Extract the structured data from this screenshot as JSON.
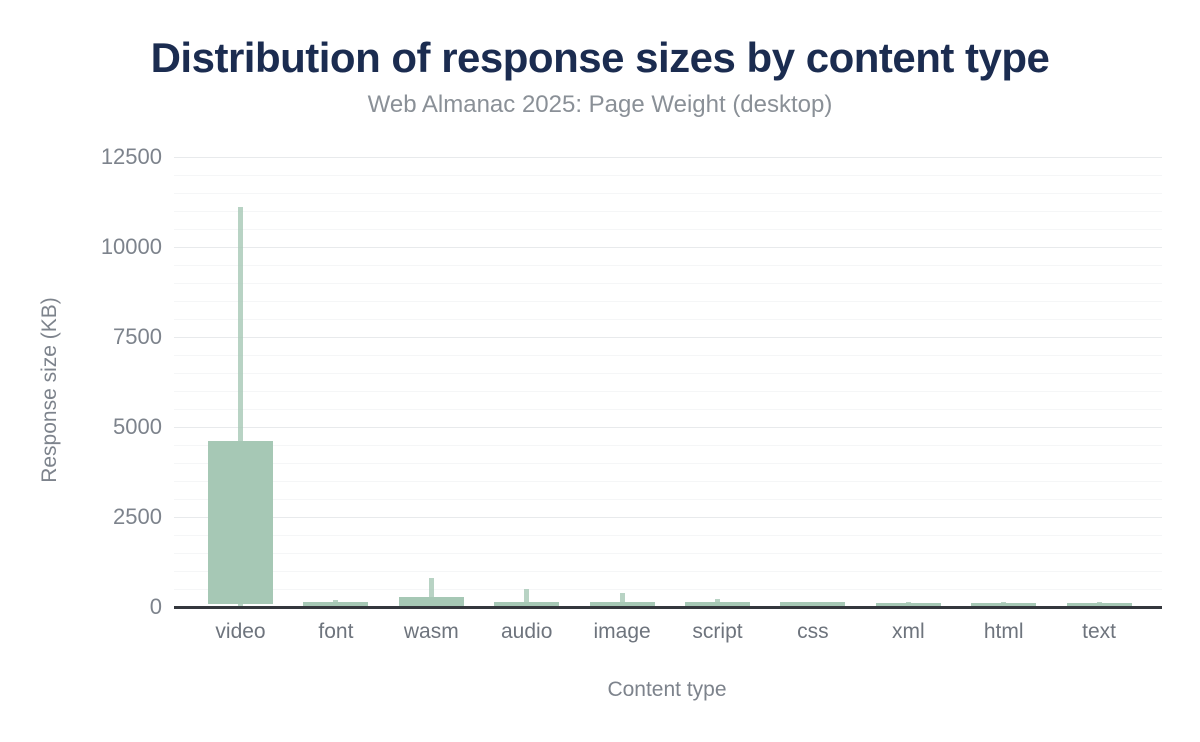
{
  "page": {
    "background": "#ffffff"
  },
  "chart_data": {
    "type": "boxplot",
    "title": "Distribution of response sizes by content type",
    "subtitle": "Web Almanac 2025: Page Weight (desktop)",
    "xlabel": "Content type",
    "ylabel": "Response size (KB)",
    "unit": "KB",
    "ylim": [
      0,
      12500
    ],
    "ytick_values": [
      0,
      2500,
      5000,
      7500,
      10000,
      12500
    ],
    "minor_grid_step": 500,
    "grid": "on",
    "legend": "none",
    "categories": [
      "video",
      "font",
      "wasm",
      "audio",
      "image",
      "script",
      "css",
      "xml",
      "html",
      "text"
    ],
    "series": [
      {
        "label": "video",
        "box_bottom": 80,
        "box_top": 4600,
        "whisker_bottom": 0,
        "whisker_top": 11100
      },
      {
        "label": "font",
        "box_bottom": 0,
        "box_top": 150,
        "whisker_bottom": 0,
        "whisker_top": 200
      },
      {
        "label": "wasm",
        "box_bottom": 0,
        "box_top": 270,
        "whisker_bottom": 0,
        "whisker_top": 800
      },
      {
        "label": "audio",
        "box_bottom": 0,
        "box_top": 150,
        "whisker_bottom": 0,
        "whisker_top": 500
      },
      {
        "label": "image",
        "box_bottom": 0,
        "box_top": 150,
        "whisker_bottom": 0,
        "whisker_top": 390
      },
      {
        "label": "script",
        "box_bottom": 0,
        "box_top": 130,
        "whisker_bottom": 0,
        "whisker_top": 210
      },
      {
        "label": "css",
        "box_bottom": 0,
        "box_top": 130,
        "whisker_bottom": 0,
        "whisker_top": 150
      },
      {
        "label": "xml",
        "box_bottom": 0,
        "box_top": 120,
        "whisker_bottom": 0,
        "whisker_top": 130
      },
      {
        "label": "html",
        "box_bottom": 0,
        "box_top": 120,
        "whisker_bottom": 0,
        "whisker_top": 130
      },
      {
        "label": "text",
        "box_bottom": 0,
        "box_top": 120,
        "whisker_bottom": 0,
        "whisker_top": 130
      }
    ]
  },
  "colors": {
    "title": "#1b2c50",
    "subtitle": "#8a9097",
    "tick_label": "#7d838c",
    "x_tick_label": "#6e747d",
    "axis_title": "#7d838c",
    "bar_fill": "#a6c8b5",
    "whisker_fill": "#a6c8b5",
    "axis_line": "#34373d",
    "grid_major": "#e8eaec",
    "grid_minor": "#f5f6f7"
  }
}
